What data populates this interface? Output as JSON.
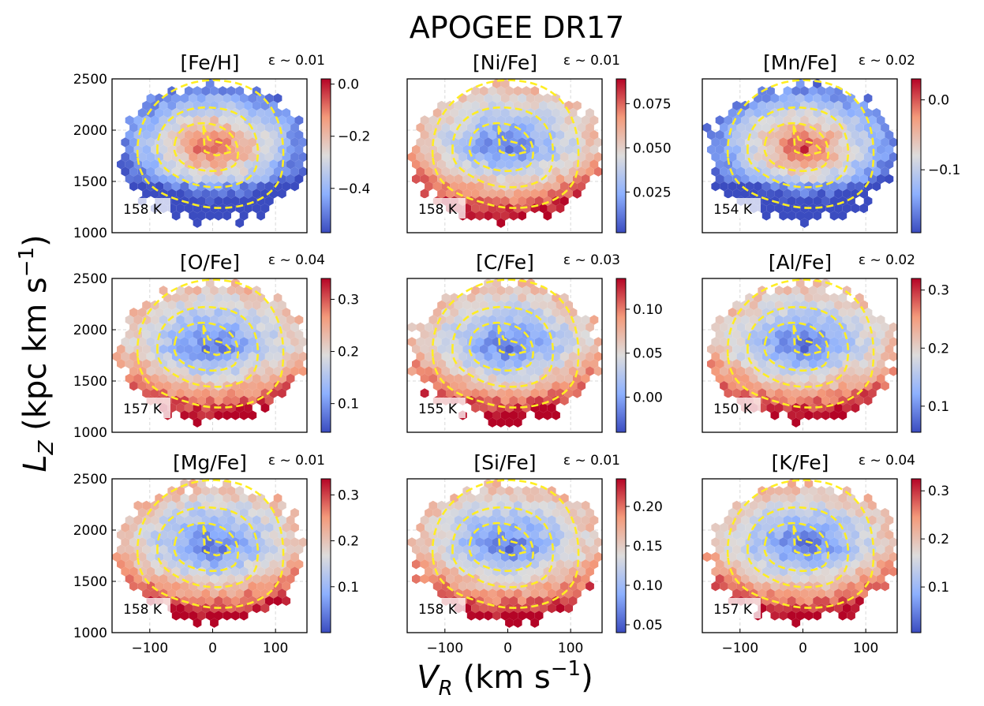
{
  "title": "APOGEE DR17",
  "xlabel": {
    "main": "V",
    "sub": "R",
    "units": " (km s",
    "sup": "−1",
    "close": ")"
  },
  "ylabel": {
    "main": "L",
    "sub": "Z",
    "units": " (kpc km s",
    "sup": "−1",
    "close": ")"
  },
  "colors": {
    "contour": "#ffee22",
    "low": "#3b4cc0",
    "mid": "#dddddd",
    "high": "#b40426"
  },
  "chart_data": [
    {
      "type": "hexbin",
      "panel": "[Fe/H]",
      "eps": "ε ~ 0.01",
      "count": "158 K",
      "pattern": "center_high",
      "xlim": [
        -160,
        150
      ],
      "ylim": [
        1000,
        2500
      ],
      "xticks": [
        "−100",
        "0",
        "100"
      ],
      "yticks": [
        "1000",
        "1500",
        "2000",
        "2500"
      ],
      "cbar": {
        "range": [
          -0.57,
          0.02
        ],
        "ticks": [
          0.0,
          -0.2,
          -0.4
        ],
        "ticklabels": [
          "0.0",
          "−0.2",
          "−0.4"
        ]
      }
    },
    {
      "type": "hexbin",
      "panel": "[Ni/Fe]",
      "eps": "ε ~ 0.01",
      "count": "158 K",
      "pattern": "center_low",
      "xlim": [
        -160,
        150
      ],
      "ylim": [
        1000,
        2500
      ],
      "xticks": [
        "−100",
        "0",
        "100"
      ],
      "yticks": [
        "1000",
        "1500",
        "2000",
        "2500"
      ],
      "cbar": {
        "range": [
          0.002,
          0.089
        ],
        "ticks": [
          0.075,
          0.05,
          0.025
        ],
        "ticklabels": [
          "0.075",
          "0.050",
          "0.025"
        ]
      }
    },
    {
      "type": "hexbin",
      "panel": "[Mn/Fe]",
      "eps": "ε ~ 0.02",
      "count": "154 K",
      "pattern": "center_high",
      "xlim": [
        -160,
        150
      ],
      "ylim": [
        1000,
        2500
      ],
      "xticks": [
        "−100",
        "0",
        "100"
      ],
      "yticks": [
        "1000",
        "1500",
        "2000",
        "2500"
      ],
      "cbar": {
        "range": [
          -0.19,
          0.03
        ],
        "ticks": [
          0.0,
          -0.1
        ],
        "ticklabels": [
          "0.0",
          "−0.1"
        ]
      }
    },
    {
      "type": "hexbin",
      "panel": "[O/Fe]",
      "eps": "ε ~ 0.04",
      "count": "157 K",
      "pattern": "center_low",
      "xlim": [
        -160,
        150
      ],
      "ylim": [
        1000,
        2500
      ],
      "xticks": [
        "−100",
        "0",
        "100"
      ],
      "yticks": [
        "1000",
        "1500",
        "2000",
        "2500"
      ],
      "cbar": {
        "range": [
          0.045,
          0.34
        ],
        "ticks": [
          0.3,
          0.2,
          0.1
        ],
        "ticklabels": [
          "0.3",
          "0.2",
          "0.1"
        ]
      }
    },
    {
      "type": "hexbin",
      "panel": "[C/Fe]",
      "eps": "ε ~ 0.03",
      "count": "155 K",
      "pattern": "center_low",
      "xlim": [
        -160,
        150
      ],
      "ylim": [
        1000,
        2500
      ],
      "xticks": [
        "−100",
        "0",
        "100"
      ],
      "yticks": [
        "1000",
        "1500",
        "2000",
        "2500"
      ],
      "cbar": {
        "range": [
          -0.04,
          0.135
        ],
        "ticks": [
          0.1,
          0.05,
          0.0
        ],
        "ticklabels": [
          "0.10",
          "0.05",
          "0.00"
        ]
      }
    },
    {
      "type": "hexbin",
      "panel": "[Al/Fe]",
      "eps": "ε ~ 0.02",
      "count": "150 K",
      "pattern": "center_low",
      "xlim": [
        -160,
        150
      ],
      "ylim": [
        1000,
        2500
      ],
      "xticks": [
        "−100",
        "0",
        "100"
      ],
      "yticks": [
        "1000",
        "1500",
        "2000",
        "2500"
      ],
      "cbar": {
        "range": [
          0.055,
          0.32
        ],
        "ticks": [
          0.3,
          0.2,
          0.1
        ],
        "ticklabels": [
          "0.3",
          "0.2",
          "0.1"
        ]
      }
    },
    {
      "type": "hexbin",
      "panel": "[Mg/Fe]",
      "eps": "ε ~ 0.01",
      "count": "158 K",
      "pattern": "center_low",
      "xlim": [
        -160,
        150
      ],
      "ylim": [
        1000,
        2500
      ],
      "xticks": [
        "−100",
        "0",
        "100"
      ],
      "yticks": [
        "1000",
        "1500",
        "2000",
        "2500"
      ],
      "cbar": {
        "range": [
          0.0,
          0.335
        ],
        "ticks": [
          0.3,
          0.2,
          0.1
        ],
        "ticklabels": [
          "0.3",
          "0.2",
          "0.1"
        ]
      }
    },
    {
      "type": "hexbin",
      "panel": "[Si/Fe]",
      "eps": "ε ~ 0.01",
      "count": "158 K",
      "pattern": "center_low",
      "xlim": [
        -160,
        150
      ],
      "ylim": [
        1000,
        2500
      ],
      "xticks": [
        "−100",
        "0",
        "100"
      ],
      "yticks": [
        "1000",
        "1500",
        "2000",
        "2500"
      ],
      "cbar": {
        "range": [
          0.04,
          0.235
        ],
        "ticks": [
          0.2,
          0.15,
          0.1,
          0.05
        ],
        "ticklabels": [
          "0.20",
          "0.15",
          "0.10",
          "0.05"
        ]
      }
    },
    {
      "type": "hexbin",
      "panel": "[K/Fe]",
      "eps": "ε ~ 0.04",
      "count": "157 K",
      "pattern": "center_low",
      "xlim": [
        -160,
        150
      ],
      "ylim": [
        1000,
        2500
      ],
      "xticks": [
        "−100",
        "0",
        "100"
      ],
      "yticks": [
        "1000",
        "1500",
        "2000",
        "2500"
      ],
      "cbar": {
        "range": [
          0.005,
          0.325
        ],
        "ticks": [
          0.3,
          0.2,
          0.1
        ],
        "ticklabels": [
          "0.3",
          "0.2",
          "0.1"
        ]
      }
    }
  ]
}
